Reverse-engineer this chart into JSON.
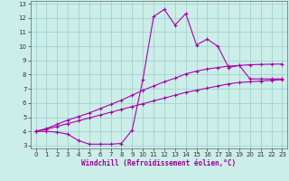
{
  "xlabel": "Windchill (Refroidissement éolien,°C)",
  "xlim": [
    -0.5,
    23.5
  ],
  "ylim": [
    2.8,
    13.2
  ],
  "xticks": [
    0,
    1,
    2,
    3,
    4,
    5,
    6,
    7,
    8,
    9,
    10,
    11,
    12,
    13,
    14,
    15,
    16,
    17,
    18,
    19,
    20,
    21,
    22,
    23
  ],
  "yticks": [
    3,
    4,
    5,
    6,
    7,
    8,
    9,
    10,
    11,
    12,
    13
  ],
  "line_color": "#aa00aa",
  "bg_color": "#cceee8",
  "grid_color": "#99cccc",
  "line1_x": [
    0,
    1,
    2,
    3,
    4,
    5,
    6,
    7,
    8,
    9,
    10,
    11,
    12,
    13,
    14,
    15,
    16,
    17,
    18,
    19,
    20,
    21,
    22,
    23
  ],
  "line1_y": [
    4.0,
    4.15,
    4.35,
    4.55,
    4.75,
    4.95,
    5.15,
    5.35,
    5.55,
    5.75,
    5.95,
    6.15,
    6.35,
    6.55,
    6.75,
    6.9,
    7.05,
    7.2,
    7.35,
    7.45,
    7.5,
    7.55,
    7.6,
    7.65
  ],
  "line2_x": [
    0,
    1,
    2,
    3,
    4,
    5,
    6,
    7,
    8,
    9,
    10,
    11,
    12,
    13,
    14,
    15,
    16,
    17,
    18,
    19,
    20,
    21,
    22,
    23
  ],
  "line2_y": [
    4.0,
    4.2,
    4.5,
    4.8,
    5.05,
    5.3,
    5.6,
    5.9,
    6.2,
    6.55,
    6.9,
    7.2,
    7.5,
    7.75,
    8.05,
    8.25,
    8.4,
    8.5,
    8.6,
    8.65,
    8.7,
    8.72,
    8.74,
    8.75
  ],
  "line3_x": [
    0,
    1,
    2,
    3,
    4,
    5,
    6,
    7,
    8,
    9,
    10,
    11,
    12,
    13,
    14,
    15,
    16,
    17,
    18,
    19,
    20,
    21,
    22,
    23
  ],
  "line3_y": [
    4.0,
    4.0,
    3.95,
    3.8,
    3.35,
    3.1,
    3.1,
    3.1,
    3.15,
    4.1,
    7.65,
    12.1,
    12.6,
    11.5,
    12.3,
    10.1,
    10.5,
    10.0,
    8.5,
    8.65,
    7.7,
    7.7,
    7.7,
    7.7
  ],
  "marker": "+",
  "markersize": 3,
  "linewidth": 0.8,
  "tick_fontsize": 5.0,
  "xlabel_fontsize": 5.5,
  "xlabel_color": "#990099"
}
